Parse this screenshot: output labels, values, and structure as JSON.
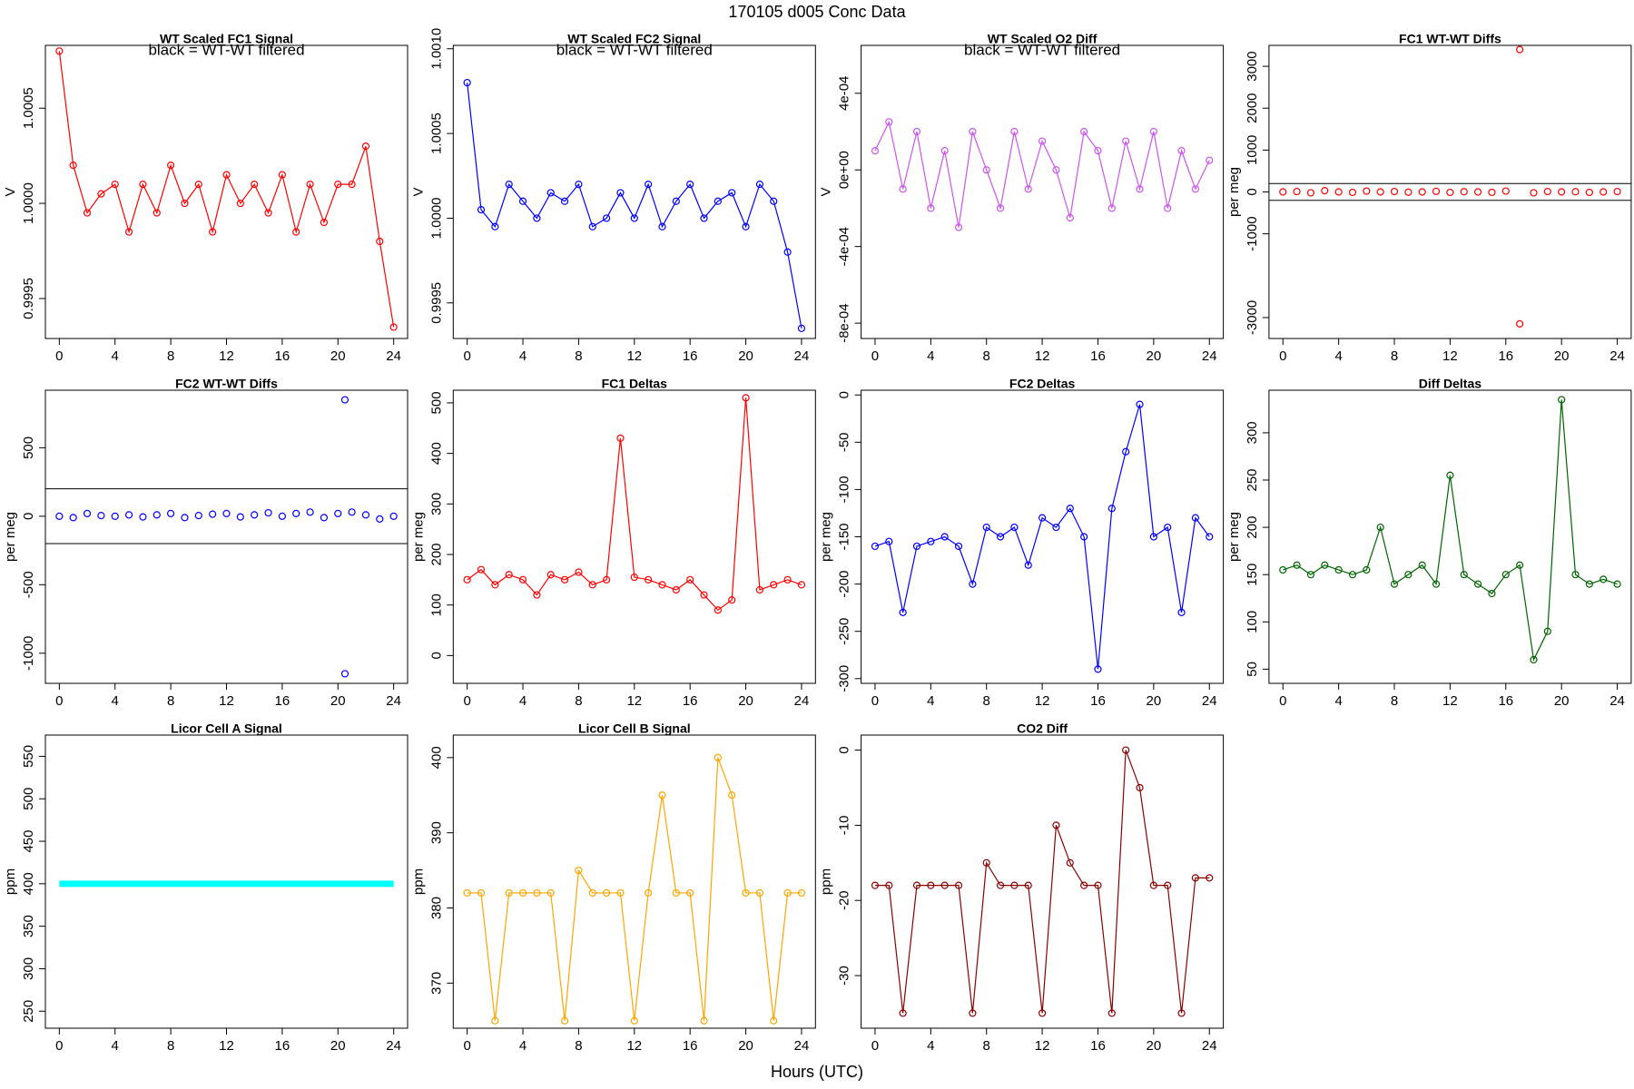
{
  "title": "170105   d005   Conc Data",
  "xlabel": "Hours (UTC)",
  "chart_data": [
    {
      "type": "line",
      "title": "WT Scaled FC1 Signal",
      "annotation": "black = WT-WT filtered",
      "ylabel": "V",
      "color": "#ff0000",
      "line": true,
      "marker": true,
      "x": [
        0,
        1,
        2,
        3,
        4,
        5,
        6,
        7,
        8,
        9,
        10,
        11,
        12,
        13,
        14,
        15,
        16,
        17,
        18,
        19,
        20,
        21,
        22,
        23,
        24
      ],
      "values": [
        1.0008,
        1.0002,
        0.99995,
        1.00005,
        1.0001,
        0.99985,
        1.0001,
        0.99995,
        1.0002,
        1.0,
        1.0001,
        0.99985,
        1.00015,
        1.0,
        1.0001,
        0.99995,
        1.00015,
        0.99985,
        1.0001,
        0.9999,
        1.0001,
        1.0001,
        1.0003,
        0.9998,
        0.99935
      ],
      "xlim": [
        -1,
        25
      ],
      "xticks": [
        0,
        4,
        8,
        12,
        16,
        20,
        24
      ],
      "ylim": [
        0.99929,
        1.00083
      ],
      "yticks": [
        0.9995,
        {
          "value": 1,
          "label": "1.0000"
        },
        1.0005
      ]
    },
    {
      "type": "line",
      "title": "WT Scaled FC2 Signal",
      "annotation": "black = WT-WT filtered",
      "ylabel": "V",
      "color": "#0000ff",
      "line": true,
      "marker": true,
      "x": [
        0,
        1,
        2,
        3,
        4,
        5,
        6,
        7,
        8,
        9,
        10,
        11,
        12,
        13,
        14,
        15,
        16,
        17,
        18,
        19,
        20,
        21,
        22,
        23,
        24
      ],
      "values": [
        1.0008,
        1.00005,
        0.99995,
        1.0002,
        1.0001,
        1.0,
        1.00015,
        1.0001,
        1.0002,
        0.99995,
        1.0,
        1.00015,
        1.0,
        1.0002,
        0.99995,
        1.0001,
        1.0002,
        1.0,
        1.0001,
        1.00015,
        0.99995,
        1.0002,
        1.0001,
        0.9998,
        0.99935
      ],
      "xlim": [
        -1,
        25
      ],
      "xticks": [
        0,
        4,
        8,
        12,
        16,
        20,
        24
      ],
      "ylim": [
        0.99929,
        1.00102
      ],
      "yticks": [
        0.9995,
        {
          "value": 1,
          "label": "1.0000"
        },
        1.0005,
        {
          "value": 1.001,
          "label": "1.0010"
        }
      ]
    },
    {
      "type": "line",
      "title": "WT Scaled O2 Diff",
      "annotation": "black = WT-WT filtered",
      "ylabel": "V",
      "color": "#cc55ee",
      "line": true,
      "marker": true,
      "x": [
        0,
        1,
        2,
        3,
        4,
        5,
        6,
        7,
        8,
        9,
        10,
        11,
        12,
        13,
        14,
        15,
        16,
        17,
        18,
        19,
        20,
        21,
        22,
        23,
        24
      ],
      "values": [
        0.0001,
        0.00025,
        -0.0001,
        0.0002,
        -0.0002,
        0.0001,
        -0.0003,
        0.0002,
        0.0,
        -0.0002,
        0.0002,
        -0.0001,
        0.00015,
        0.0,
        -0.00025,
        0.0002,
        0.0001,
        -0.0002,
        0.00015,
        -0.0001,
        0.0002,
        -0.0002,
        0.0001,
        -0.0001,
        5e-05
      ],
      "xlim": [
        -1,
        25
      ],
      "xticks": [
        0,
        4,
        8,
        12,
        16,
        20,
        24
      ],
      "ylim": [
        -0.00088,
        0.00065
      ],
      "yticks": [
        {
          "value": -0.0008,
          "label": "-8e-04"
        },
        {
          "value": -0.0004,
          "label": "-4e-04"
        },
        {
          "value": 0,
          "label": "0e+00"
        },
        {
          "value": 0.0004,
          "label": "4e-04"
        }
      ]
    },
    {
      "type": "scatter",
      "title": "FC1 WT-WT Diffs",
      "ylabel": "per meg",
      "color": "#ff0000",
      "line": false,
      "marker": true,
      "x": [
        0,
        1,
        2,
        3,
        4,
        5,
        6,
        7,
        8,
        9,
        10,
        11,
        12,
        13,
        14,
        15,
        16,
        17,
        17,
        18,
        19,
        20,
        21,
        22,
        23,
        24
      ],
      "values": [
        0,
        10,
        -20,
        30,
        0,
        -10,
        20,
        0,
        10,
        -5,
        0,
        15,
        -10,
        5,
        0,
        -10,
        20,
        3400,
        -3150,
        -20,
        10,
        0,
        5,
        -10,
        0,
        10
      ],
      "hlines": [
        200,
        -200
      ],
      "xlim": [
        -1,
        25
      ],
      "xticks": [
        0,
        4,
        8,
        12,
        16,
        20,
        24
      ],
      "ylim": [
        -3500,
        3500
      ],
      "yticks": [
        -3000,
        -1000,
        0,
        1000,
        2000,
        3000
      ]
    },
    {
      "type": "scatter",
      "title": "FC2 WT-WT Diffs",
      "ylabel": "per meg",
      "color": "#0000ff",
      "line": false,
      "marker": true,
      "x": [
        0,
        1,
        2,
        3,
        4,
        5,
        6,
        7,
        8,
        9,
        10,
        11,
        12,
        13,
        14,
        15,
        16,
        17,
        18,
        19,
        20,
        20.5,
        20.5,
        21,
        22,
        23,
        24
      ],
      "values": [
        0,
        -10,
        20,
        5,
        0,
        10,
        -5,
        10,
        20,
        -10,
        5,
        15,
        20,
        -5,
        10,
        25,
        0,
        20,
        30,
        -10,
        20,
        850,
        -1150,
        30,
        10,
        -20,
        0
      ],
      "hlines": [
        200,
        -200
      ],
      "xlim": [
        -1,
        25
      ],
      "xticks": [
        0,
        4,
        8,
        12,
        16,
        20,
        24
      ],
      "ylim": [
        -1220,
        920
      ],
      "yticks": [
        -1000,
        -500,
        0,
        500
      ]
    },
    {
      "type": "line",
      "title": "FC1 Deltas",
      "ylabel": "per meg",
      "color": "#ff0000",
      "line": true,
      "marker": true,
      "x": [
        0,
        1,
        2,
        3,
        4,
        5,
        6,
        7,
        8,
        9,
        10,
        11,
        12,
        13,
        14,
        15,
        16,
        17,
        18,
        19,
        20,
        21,
        22,
        23,
        24
      ],
      "values": [
        150,
        170,
        140,
        160,
        150,
        120,
        160,
        150,
        165,
        140,
        150,
        430,
        155,
        150,
        140,
        130,
        150,
        120,
        90,
        110,
        510,
        130,
        140,
        150,
        140
      ],
      "xlim": [
        -1,
        25
      ],
      "xticks": [
        0,
        4,
        8,
        12,
        16,
        20,
        24
      ],
      "ylim": [
        -55,
        525
      ],
      "yticks": [
        0,
        100,
        200,
        300,
        400,
        500
      ]
    },
    {
      "type": "line",
      "title": "FC2 Deltas",
      "ylabel": "per meg",
      "color": "#0000ff",
      "line": true,
      "marker": true,
      "x": [
        0,
        1,
        2,
        3,
        4,
        5,
        6,
        7,
        8,
        9,
        10,
        11,
        12,
        13,
        14,
        15,
        16,
        17,
        18,
        19,
        20,
        21,
        22,
        23,
        24
      ],
      "values": [
        -160,
        -155,
        -230,
        -160,
        -155,
        -150,
        -160,
        -200,
        -140,
        -150,
        -140,
        -180,
        -130,
        -140,
        -120,
        -150,
        -290,
        -120,
        -60,
        -10,
        -150,
        -140,
        -230,
        -130,
        -150
      ],
      "xlim": [
        -1,
        25
      ],
      "xticks": [
        0,
        4,
        8,
        12,
        16,
        20,
        24
      ],
      "ylim": [
        -305,
        5
      ],
      "yticks": [
        -300,
        -250,
        -200,
        -150,
        -100,
        -50,
        0
      ]
    },
    {
      "type": "line",
      "title": "Diff Deltas",
      "ylabel": "per meg",
      "color": "#006400",
      "line": true,
      "marker": true,
      "x": [
        0,
        1,
        2,
        3,
        4,
        5,
        6,
        7,
        8,
        9,
        10,
        11,
        12,
        13,
        14,
        15,
        16,
        17,
        18,
        19,
        20,
        21,
        22,
        23,
        24
      ],
      "values": [
        155,
        160,
        150,
        160,
        155,
        150,
        155,
        200,
        140,
        150,
        160,
        140,
        255,
        150,
        140,
        130,
        150,
        160,
        60,
        90,
        335,
        150,
        140,
        145,
        140
      ],
      "xlim": [
        -1,
        25
      ],
      "xticks": [
        0,
        4,
        8,
        12,
        16,
        20,
        24
      ],
      "ylim": [
        35,
        345
      ],
      "yticks": [
        50,
        100,
        150,
        200,
        250,
        300
      ]
    },
    {
      "type": "line",
      "title": "Licor Cell A Signal",
      "ylabel": "ppm",
      "color": "#00ffff",
      "line": true,
      "marker": false,
      "x": [
        0,
        6,
        12,
        18,
        24
      ],
      "values": [
        400,
        400,
        400,
        400,
        400
      ],
      "xlim": [
        -1,
        25
      ],
      "xticks": [
        0,
        4,
        8,
        12,
        16,
        20,
        24
      ],
      "ylim": [
        230,
        575
      ],
      "yticks": [
        250,
        300,
        350,
        400,
        450,
        500,
        550
      ]
    },
    {
      "type": "line",
      "title": "Licor Cell B Signal",
      "ylabel": "ppm",
      "color": "#ffa500",
      "line": true,
      "marker": true,
      "x": [
        0,
        1,
        2,
        3,
        4,
        5,
        6,
        7,
        8,
        9,
        10,
        11,
        12,
        13,
        14,
        15,
        16,
        17,
        18,
        19,
        20,
        21,
        22,
        23,
        24
      ],
      "values": [
        382,
        382,
        365,
        382,
        382,
        382,
        382,
        365,
        385,
        382,
        382,
        382,
        365,
        382,
        395,
        382,
        382,
        365,
        400,
        395,
        382,
        382,
        365,
        382,
        382
      ],
      "xlim": [
        -1,
        25
      ],
      "xticks": [
        0,
        4,
        8,
        12,
        16,
        20,
        24
      ],
      "ylim": [
        364,
        403
      ],
      "yticks": [
        370,
        380,
        390,
        400
      ]
    },
    {
      "type": "line",
      "title": "CO2 Diff",
      "ylabel": "ppm",
      "color": "#8b0000",
      "line": true,
      "marker": true,
      "x": [
        0,
        1,
        2,
        3,
        4,
        5,
        6,
        7,
        8,
        9,
        10,
        11,
        12,
        13,
        14,
        15,
        16,
        17,
        18,
        19,
        20,
        21,
        22,
        23,
        24
      ],
      "values": [
        -18,
        -18,
        -35,
        -18,
        -18,
        -18,
        -18,
        -35,
        -15,
        -18,
        -18,
        -18,
        -35,
        -10,
        -15,
        -18,
        -18,
        -35,
        0,
        -5,
        -18,
        -18,
        -35,
        -17,
        -17
      ],
      "xlim": [
        -1,
        25
      ],
      "xticks": [
        0,
        4,
        8,
        12,
        16,
        20,
        24
      ],
      "ylim": [
        -37,
        2
      ],
      "yticks": [
        -30,
        -20,
        -10,
        0
      ]
    }
  ]
}
